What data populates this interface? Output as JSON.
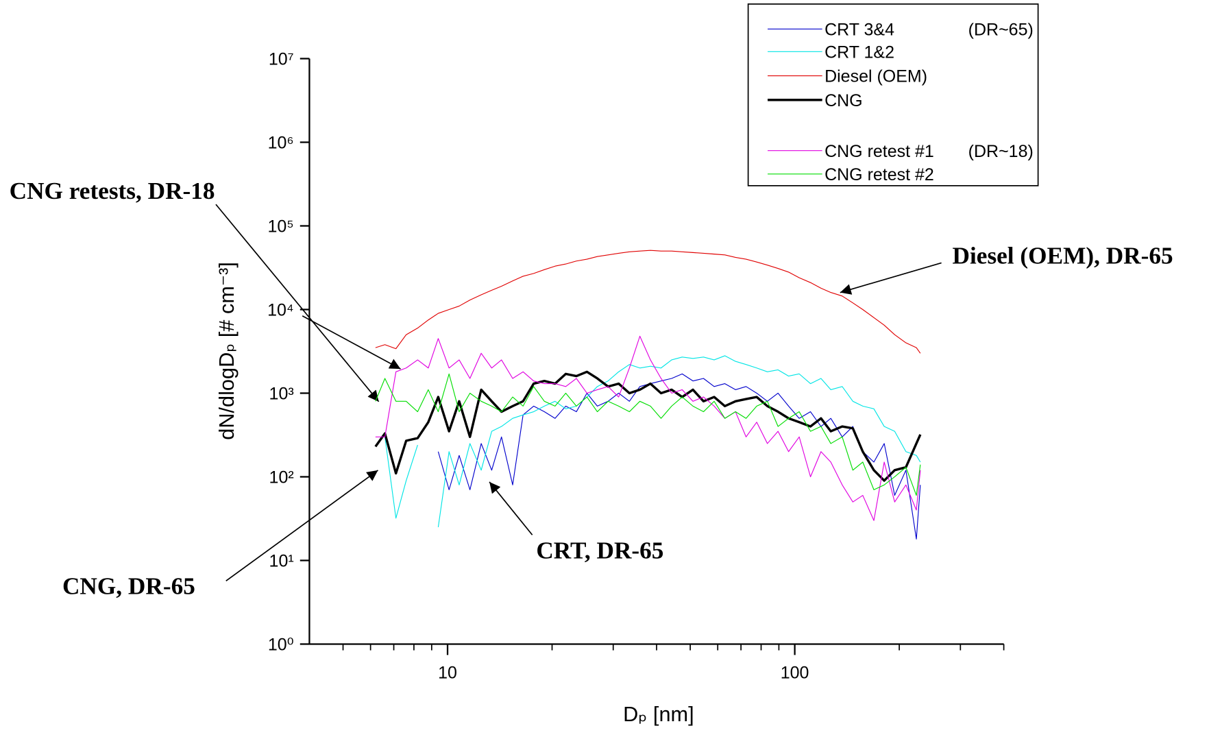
{
  "chart_data": {
    "type": "line",
    "xlabel": "Dₚ  [nm]",
    "ylabel": "dN/dlogDₚ   [# cm⁻³]",
    "xscale": "log",
    "yscale": "log",
    "xlim": [
      4,
      400
    ],
    "ylim": [
      1,
      10000000
    ],
    "xticks": [
      10,
      100
    ],
    "xminorticks": [
      5,
      6,
      7,
      8,
      9,
      20,
      30,
      40,
      50,
      60,
      70,
      80,
      90,
      200,
      300,
      400
    ],
    "yticks": [
      {
        "value": 1,
        "label": "10⁰"
      },
      {
        "value": 10,
        "label": "10¹"
      },
      {
        "value": 100,
        "label": "10²"
      },
      {
        "value": 1000,
        "label": "10³"
      },
      {
        "value": 10000,
        "label": "10⁴"
      },
      {
        "value": 100000,
        "label": "10⁵"
      },
      {
        "value": 1000000,
        "label": "10⁶"
      },
      {
        "value": 10000000,
        "label": "10⁷"
      }
    ],
    "legend": "upper right",
    "x": [
      6.2,
      6.6,
      7.1,
      7.6,
      8.2,
      8.8,
      9.4,
      10.1,
      10.8,
      11.6,
      12.5,
      13.4,
      14.3,
      15.4,
      16.5,
      17.7,
      19,
      20.4,
      21.9,
      23.5,
      25.2,
      27,
      29,
      31.1,
      33.4,
      35.8,
      38.4,
      41.2,
      44.2,
      47.4,
      50.9,
      54.6,
      58.6,
      62.9,
      67.5,
      72.4,
      77.7,
      83.4,
      89.5,
      96,
      103,
      111,
      119,
      127,
      137,
      147,
      157,
      169,
      181,
      194,
      209,
      224,
      230
    ],
    "series": [
      {
        "name": "CRT 3&4",
        "legend_note": "(DR~65)",
        "color": "#0000cc",
        "width": 1,
        "values": [
          null,
          null,
          null,
          null,
          null,
          null,
          200,
          70,
          180,
          70,
          250,
          120,
          300,
          80,
          550,
          700,
          600,
          500,
          700,
          600,
          1000,
          700,
          800,
          1000,
          800,
          1200,
          1300,
          1400,
          1500,
          1700,
          1400,
          1500,
          1200,
          1300,
          1100,
          1200,
          1000,
          800,
          1000,
          700,
          500,
          600,
          400,
          500,
          300,
          400,
          200,
          150,
          250,
          60,
          120,
          18,
          80
        ]
      },
      {
        "name": "CRT 1&2",
        "color": "#00e5e5",
        "width": 1,
        "values": [
          null,
          300,
          32,
          90,
          240,
          null,
          25,
          200,
          80,
          250,
          120,
          350,
          400,
          500,
          550,
          600,
          700,
          800,
          650,
          700,
          900,
          1200,
          1400,
          1800,
          2200,
          2000,
          2100,
          2000,
          2500,
          2700,
          2600,
          2700,
          2500,
          2800,
          2400,
          2200,
          2000,
          1800,
          1900,
          1600,
          1700,
          1300,
          1500,
          1100,
          1200,
          800,
          700,
          650,
          400,
          350,
          200,
          180,
          150
        ]
      },
      {
        "name": "Diesel (OEM)",
        "color": "#e00000",
        "width": 1,
        "values": [
          3500,
          3800,
          3400,
          5000,
          6000,
          7500,
          9000,
          10000,
          11000,
          13000,
          15000,
          17000,
          19000,
          22000,
          25000,
          27000,
          30000,
          33000,
          35000,
          38000,
          40000,
          43000,
          45000,
          47000,
          49000,
          50000,
          51000,
          50000,
          50000,
          49000,
          48000,
          47000,
          46000,
          45000,
          42000,
          40000,
          37000,
          34000,
          31000,
          28000,
          24000,
          21000,
          18000,
          16000,
          14500,
          12000,
          10000,
          8000,
          6500,
          5000,
          4000,
          3500,
          3000
        ]
      },
      {
        "name": "CNG",
        "color": "#000000",
        "width": 3,
        "values": [
          230,
          330,
          110,
          270,
          290,
          450,
          900,
          350,
          800,
          300,
          1100,
          800,
          600,
          700,
          800,
          1300,
          1400,
          1300,
          1700,
          1600,
          1800,
          1500,
          1200,
          1300,
          1000,
          1100,
          1300,
          1000,
          1100,
          900,
          1100,
          800,
          900,
          700,
          800,
          850,
          900,
          700,
          600,
          500,
          450,
          400,
          500,
          350,
          400,
          380,
          200,
          120,
          90,
          120,
          130,
          250,
          320
        ]
      },
      {
        "name": "CNG retest #1",
        "legend_note": "(DR~18)",
        "color": "#e000e0",
        "width": 1,
        "values": [
          300,
          300,
          1800,
          2000,
          2500,
          2000,
          4500,
          2000,
          2500,
          1500,
          3000,
          2000,
          2500,
          1500,
          1800,
          1400,
          1300,
          1300,
          1200,
          1500,
          1000,
          1100,
          1200,
          900,
          2000,
          4800,
          2500,
          1500,
          1000,
          1100,
          800,
          900,
          700,
          500,
          600,
          300,
          450,
          250,
          350,
          200,
          300,
          100,
          200,
          150,
          80,
          50,
          60,
          30,
          150,
          50,
          80,
          40,
          120
        ]
      },
      {
        "name": "CNG retest #2",
        "color": "#00dd00",
        "width": 1,
        "values": [
          800,
          1500,
          800,
          800,
          600,
          1100,
          600,
          1700,
          600,
          1000,
          800,
          700,
          600,
          900,
          700,
          1200,
          800,
          700,
          1000,
          700,
          900,
          600,
          800,
          700,
          600,
          800,
          700,
          500,
          700,
          900,
          700,
          600,
          800,
          500,
          600,
          500,
          700,
          800,
          400,
          500,
          600,
          350,
          400,
          250,
          300,
          120,
          150,
          70,
          80,
          100,
          130,
          60,
          140
        ]
      }
    ],
    "annotations": [
      "CNG retests, DR-18",
      "Diesel (OEM), DR-65",
      "CRT, DR-65",
      "CNG, DR-65"
    ]
  }
}
